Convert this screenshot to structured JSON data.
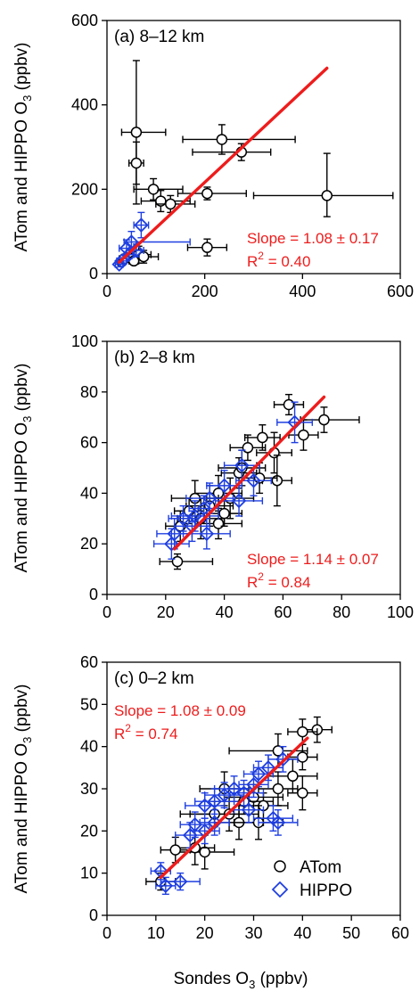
{
  "colors": {
    "atom": "#000000",
    "hippo": "#1f3fe0",
    "fit": "#ee1c1c"
  },
  "x_axis_label": {
    "main": "Sondes O",
    "sub": "3",
    "tail": " (ppbv)"
  },
  "legend": {
    "atom": "ATom",
    "hippo": "HIPPO",
    "placement": "bottom-right of panel c"
  },
  "chart_data": [
    {
      "type": "scatter",
      "panel_label": "(a) 8–12 km",
      "xlim": [
        0,
        600
      ],
      "ylim": [
        0,
        600
      ],
      "xticks": [
        0,
        200,
        400,
        600
      ],
      "yticks": [
        0,
        200,
        400,
        600
      ],
      "xtick_labels": [
        "0",
        "200",
        "400",
        "600"
      ],
      "ytick_labels": [
        "0",
        "200",
        "400",
        "600"
      ],
      "ylabel": {
        "main": "ATom and HIPPO O",
        "sub": "3",
        "tail": " (ppbv)"
      },
      "slope_text": "Slope = 1.08 ± 0.17",
      "r2_text": {
        "main": "R",
        "sup": "2",
        "tail": " = 0.40"
      },
      "fit_line": {
        "x1": 25,
        "y1": 27,
        "x2": 450,
        "y2": 487
      },
      "series": [
        {
          "name": "ATom",
          "marker": "circle",
          "points": [
            [
              60,
              335,
              30,
              60,
              170,
              170
            ],
            [
              60,
              262,
              15,
              15,
              50,
              50
            ],
            [
              235,
              318,
              80,
              150,
              35,
              35
            ],
            [
              275,
              288,
              100,
              60,
              20,
              20
            ],
            [
              95,
              200,
              40,
              60,
              25,
              25
            ],
            [
              110,
              172,
              40,
              60,
              25,
              25
            ],
            [
              130,
              165,
              30,
              50,
              20,
              20
            ],
            [
              205,
              190,
              60,
              80,
              15,
              15
            ],
            [
              450,
              185,
              150,
              135,
              50,
              100
            ],
            [
              205,
              62,
              40,
              40,
              20,
              20
            ],
            [
              65,
              45,
              25,
              25,
              20,
              20
            ],
            [
              75,
              40,
              30,
              30,
              15,
              15
            ],
            [
              45,
              38,
              15,
              15,
              10,
              10
            ],
            [
              55,
              30,
              10,
              10,
              8,
              8
            ],
            [
              30,
              28,
              8,
              8,
              6,
              6
            ],
            [
              35,
              35,
              10,
              10,
              8,
              8
            ]
          ]
        },
        {
          "name": "HIPPO",
          "marker": "diamond",
          "points": [
            [
              70,
              115,
              15,
              15,
              30,
              30
            ],
            [
              50,
              75,
              15,
              120,
              25,
              25
            ],
            [
              40,
              60,
              15,
              20,
              20,
              20
            ],
            [
              25,
              22,
              8,
              8,
              6,
              6
            ],
            [
              30,
              30,
              10,
              10,
              8,
              8
            ],
            [
              45,
              45,
              10,
              10,
              10,
              10
            ],
            [
              60,
              55,
              15,
              15,
              15,
              15
            ]
          ]
        }
      ]
    },
    {
      "type": "scatter",
      "panel_label": "(b) 2–8 km",
      "xlim": [
        0,
        100
      ],
      "ylim": [
        0,
        100
      ],
      "xticks": [
        0,
        20,
        40,
        60,
        80,
        100
      ],
      "yticks": [
        0,
        20,
        40,
        60,
        80,
        100
      ],
      "xtick_labels": [
        "0",
        "20",
        "40",
        "60",
        "80",
        "100"
      ],
      "ytick_labels": [
        "0",
        "20",
        "40",
        "60",
        "80",
        "100"
      ],
      "ylabel": {
        "main": "ATom and HIPPO O",
        "sub": "3",
        "tail": " (ppbv)"
      },
      "slope_text": "Slope = 1.14 ± 0.07",
      "r2_text": {
        "main": "R",
        "sup": "2",
        "tail": " = 0.84"
      },
      "fit_line": {
        "x1": 23,
        "y1": 18,
        "x2": 74,
        "y2": 78
      },
      "series": [
        {
          "name": "ATom",
          "marker": "circle",
          "points": [
            [
              62,
              75,
              5,
              5,
              4,
              4
            ],
            [
              74,
              69,
              8,
              12,
              5,
              5
            ],
            [
              67,
              63,
              5,
              5,
              6,
              6
            ],
            [
              53,
              62,
              6,
              6,
              5,
              5
            ],
            [
              48,
              58,
              6,
              6,
              5,
              5
            ],
            [
              57,
              56,
              6,
              6,
              8,
              8
            ],
            [
              58,
              45,
              5,
              5,
              10,
              10
            ],
            [
              45,
              48,
              6,
              6,
              6,
              6
            ],
            [
              52,
              46,
              6,
              6,
              6,
              6
            ],
            [
              38,
              40,
              8,
              8,
              7,
              7
            ],
            [
              42,
              38,
              8,
              8,
              8,
              8
            ],
            [
              35,
              35,
              8,
              8,
              8,
              8
            ],
            [
              32,
              30,
              8,
              8,
              8,
              8
            ],
            [
              38,
              28,
              8,
              8,
              6,
              6
            ],
            [
              40,
              32,
              6,
              6,
              5,
              5
            ],
            [
              25,
              27,
              5,
              5,
              6,
              6
            ],
            [
              24,
              13,
              6,
              12,
              3,
              3
            ],
            [
              46,
              50,
              8,
              8,
              7,
              7
            ],
            [
              30,
              38,
              8,
              8,
              7,
              7
            ],
            [
              28,
              33,
              5,
              5,
              5,
              5
            ]
          ]
        },
        {
          "name": "HIPPO",
          "marker": "diamond",
          "points": [
            [
              64,
              68,
              6,
              6,
              8,
              8
            ],
            [
              46,
              51,
              6,
              6,
              6,
              6
            ],
            [
              40,
              43,
              6,
              6,
              6,
              6
            ],
            [
              35,
              38,
              8,
              8,
              6,
              6
            ],
            [
              30,
              31,
              8,
              8,
              6,
              6
            ],
            [
              34,
              24,
              8,
              8,
              6,
              6
            ],
            [
              22,
              20,
              6,
              6,
              6,
              6
            ],
            [
              23,
              24,
              6,
              6,
              6,
              6
            ],
            [
              29,
              27,
              6,
              6,
              6,
              6
            ],
            [
              45,
              37,
              8,
              8,
              6,
              6
            ],
            [
              50,
              45,
              6,
              6,
              6,
              6
            ],
            [
              26,
              30,
              5,
              5,
              5,
              5
            ],
            [
              33,
              34,
              5,
              5,
              5,
              5
            ]
          ]
        }
      ]
    },
    {
      "type": "scatter",
      "panel_label": "(c) 0–2 km",
      "xlim": [
        0,
        60
      ],
      "ylim": [
        0,
        60
      ],
      "xticks": [
        0,
        10,
        20,
        30,
        40,
        50,
        60
      ],
      "yticks": [
        0,
        10,
        20,
        30,
        40,
        50,
        60
      ],
      "xtick_labels": [
        "0",
        "10",
        "20",
        "30",
        "40",
        "50",
        "60"
      ],
      "ytick_labels": [
        "0",
        "10",
        "20",
        "30",
        "40",
        "50",
        "60"
      ],
      "ylabel": {
        "main": "ATom and HIPPO O",
        "sub": "3",
        "tail": " (ppbv)"
      },
      "slope_text": "Slope = 1.08 ± 0.09",
      "r2_text": {
        "main": "R",
        "sup": "2",
        "tail": " = 0.74"
      },
      "fit_line": {
        "x1": 11,
        "y1": 9,
        "x2": 41,
        "y2": 42
      },
      "series": [
        {
          "name": "ATom",
          "marker": "circle",
          "points": [
            [
              43,
              44,
              3,
              3,
              3,
              3
            ],
            [
              40,
              43.5,
              3,
              3,
              3,
              3
            ],
            [
              35,
              39,
              10,
              6,
              4,
              4
            ],
            [
              40,
              37.5,
              3,
              3,
              3,
              3
            ],
            [
              40,
              29,
              3,
              3,
              4,
              4
            ],
            [
              35,
              30,
              4,
              4,
              4,
              4
            ],
            [
              30,
              28,
              6,
              6,
              3,
              3
            ],
            [
              28,
              27,
              6,
              6,
              3,
              3
            ],
            [
              32,
              26,
              5,
              5,
              3,
              3
            ],
            [
              25,
              24,
              10,
              6,
              4,
              4
            ],
            [
              22,
              24,
              5,
              5,
              3,
              3
            ],
            [
              20,
              15,
              6,
              6,
              4,
              4
            ],
            [
              18,
              16,
              4,
              4,
              4,
              4
            ],
            [
              14,
              15.5,
              3,
              3,
              3,
              3
            ],
            [
              27,
              22,
              5,
              5,
              4,
              4
            ],
            [
              31,
              22,
              5,
              5,
              4,
              4
            ],
            [
              11,
              8,
              3,
              3,
              2,
              2
            ],
            [
              38,
              33,
              5,
              5,
              4,
              4
            ],
            [
              24,
              30,
              5,
              5,
              4,
              4
            ]
          ]
        },
        {
          "name": "HIPPO",
          "marker": "diamond",
          "points": [
            [
              33,
              35,
              3,
              3,
              3,
              3
            ],
            [
              31,
              33.5,
              3,
              3,
              3,
              3
            ],
            [
              30,
              31,
              3,
              3,
              3,
              3
            ],
            [
              28,
              29,
              4,
              4,
              3,
              3
            ],
            [
              26,
              30,
              4,
              4,
              3,
              3
            ],
            [
              24,
              28.5,
              4,
              4,
              3,
              3
            ],
            [
              22,
              27,
              4,
              4,
              3,
              3
            ],
            [
              20,
              26,
              4,
              4,
              3,
              3
            ],
            [
              18,
              21.5,
              3,
              3,
              3,
              3
            ],
            [
              20,
              20,
              3,
              3,
              3,
              3
            ],
            [
              22,
              22,
              3,
              3,
              3,
              3
            ],
            [
              34,
              23,
              4,
              4,
              3,
              3
            ],
            [
              35,
              22,
              4,
              4,
              3,
              3
            ],
            [
              15,
              8,
              4,
              4,
              2,
              2
            ],
            [
              11,
              10.5,
              2,
              2,
              2,
              2
            ],
            [
              12,
              7,
              2,
              2,
              2,
              2
            ],
            [
              17,
              19,
              3,
              3,
              3,
              3
            ],
            [
              29,
              25,
              3,
              3,
              3,
              3
            ],
            [
              36,
              37,
              3,
              3,
              3,
              3
            ]
          ]
        }
      ]
    }
  ]
}
